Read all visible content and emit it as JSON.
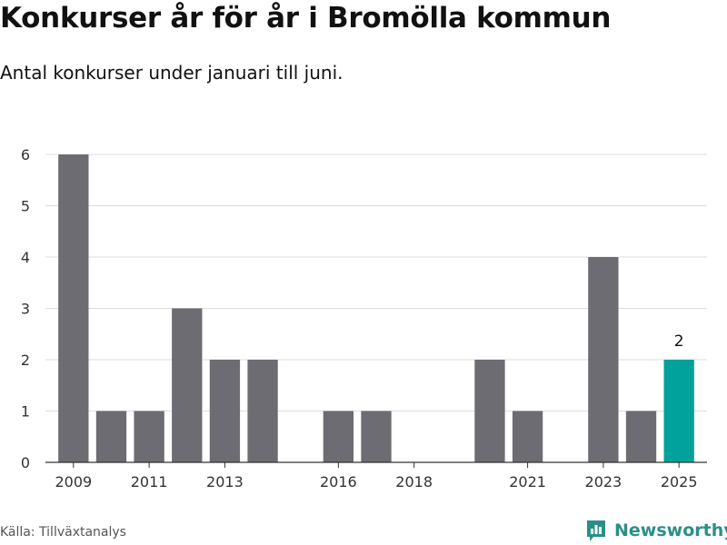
{
  "header": {
    "title": "Konkurser år för år i Bromölla kommun",
    "subtitle": "Antal konkurser under januari till juni."
  },
  "footer": {
    "source": "Källa: Tillväxtanalys",
    "brand": "Newsworthy"
  },
  "colors": {
    "bar": "#6d6c72",
    "highlight": "#00a29b",
    "grid": "#dddddd",
    "brand": "#2a8f88"
  },
  "chart_data": {
    "type": "bar",
    "x": [
      2009,
      2010,
      2011,
      2012,
      2013,
      2014,
      2015,
      2016,
      2017,
      2018,
      2019,
      2020,
      2021,
      2022,
      2023,
      2024,
      2025
    ],
    "values": [
      6,
      1,
      1,
      3,
      2,
      2,
      0,
      1,
      1,
      0,
      0,
      2,
      1,
      0,
      4,
      1,
      2
    ],
    "highlight_x": 2025,
    "annotation": {
      "x": 2025,
      "text": "2"
    },
    "ylim": [
      0,
      6
    ],
    "yticks": [
      0,
      1,
      2,
      3,
      4,
      5,
      6
    ],
    "xticks": [
      2009,
      2011,
      2013,
      2016,
      2018,
      2021,
      2023,
      2025
    ],
    "grid": true,
    "xlabel": "",
    "ylabel": ""
  }
}
